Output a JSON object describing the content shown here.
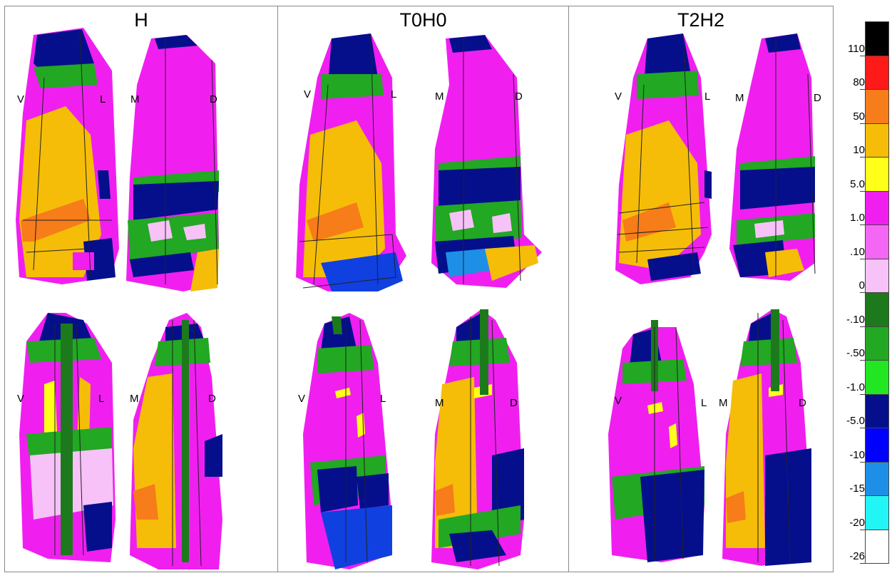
{
  "panels": [
    {
      "title": "H",
      "top_labels": [
        "V",
        "L",
        "M",
        "D"
      ],
      "bottom_labels": [
        "V",
        "L",
        "M",
        "D"
      ]
    },
    {
      "title": "T0H0",
      "top_labels": [
        "V",
        "L",
        "M",
        "D"
      ],
      "bottom_labels": [
        "V",
        "L",
        "M",
        "D"
      ]
    },
    {
      "title": "T2H2",
      "top_labels": [
        "V",
        "L",
        "M",
        "D"
      ],
      "bottom_labels": [
        "V",
        "L",
        "M",
        "D"
      ]
    }
  ],
  "legend": {
    "colors": [
      "#000000",
      "#ff1a1a",
      "#f77c1a",
      "#f5bd08",
      "#ffff1a",
      "#f01ff0",
      "#f466f4",
      "#f7c2f7",
      "#1c7a1c",
      "#22a822",
      "#22e622",
      "#050f8c",
      "#0000ff",
      "#1e8fe6",
      "#22f5f5",
      "#ffffff"
    ],
    "labels": [
      "110",
      "80",
      "50",
      "10",
      "5.0",
      "1.0",
      ".10",
      "0",
      "-.10",
      "-.50",
      "-1.0",
      "-5.0",
      "-10",
      "-15",
      "-20",
      "-26"
    ]
  },
  "colors": {
    "magenta": "#f01ff0",
    "light_magenta": "#f7c2f7",
    "yellow_orange": "#f5bd08",
    "yellow": "#ffff1a",
    "orange": "#f77c1a",
    "green": "#22a822",
    "bright_green": "#22e622",
    "dark_green": "#1c7a1c",
    "navy": "#050f8c",
    "blue": "#1040e0"
  }
}
